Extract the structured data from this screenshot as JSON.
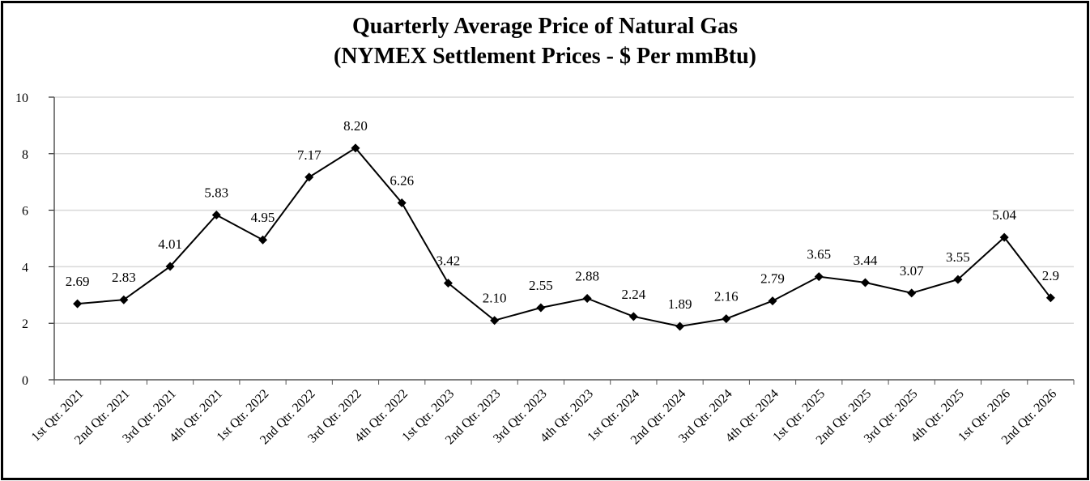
{
  "chart_data": {
    "type": "line",
    "title": "Quarterly Average Price of Natural Gas",
    "subtitle": "(NYMEX Settlement Prices - $ Per mmBtu)",
    "xlabel": "",
    "ylabel": "",
    "ylim": [
      0,
      10
    ],
    "yticks": [
      "0",
      "2",
      "4",
      "6",
      "8",
      "10"
    ],
    "grid": true,
    "legend": "none",
    "line_color": "#000000",
    "grid_color": "#d9d9d9",
    "categories": [
      "1st Qtr. 2021",
      "2nd Qtr. 2021",
      "3rd Qtr. 2021",
      "4th Qtr. 2021",
      "1st Qtr. 2022",
      "2nd Qtr. 2022",
      "3rd Qtr. 2022",
      "4th Qtr. 2022",
      "1st Qtr. 2023",
      "2nd Qtr. 2023",
      "3rd Qtr. 2023",
      "4th Qtr. 2023",
      "1st Qtr. 2024",
      "2nd Qtr. 2024",
      "3rd Qtr. 2024",
      "4th Qtr. 2024",
      "1st Qtr. 2025",
      "2nd Qtr. 2025",
      "3rd Qtr. 2025",
      "4th Qtr. 2025",
      "1st Qtr. 2026",
      "2nd Qtr. 2026"
    ],
    "values": [
      2.69,
      2.83,
      4.01,
      5.83,
      4.95,
      7.17,
      8.2,
      6.26,
      3.42,
      2.1,
      2.55,
      2.88,
      2.24,
      1.89,
      2.16,
      2.79,
      3.65,
      3.44,
      3.07,
      3.55,
      5.04,
      2.9
    ],
    "data_labels": [
      "2.69",
      "2.83",
      "4.01",
      "5.83",
      "4.95",
      "7.17",
      "8.20",
      "6.26",
      "3.42",
      "2.10",
      "2.55",
      "2.88",
      "2.24",
      "1.89",
      "2.16",
      "2.79",
      "3.65",
      "3.44",
      "3.07",
      "3.55",
      "5.04",
      "2.9"
    ]
  }
}
